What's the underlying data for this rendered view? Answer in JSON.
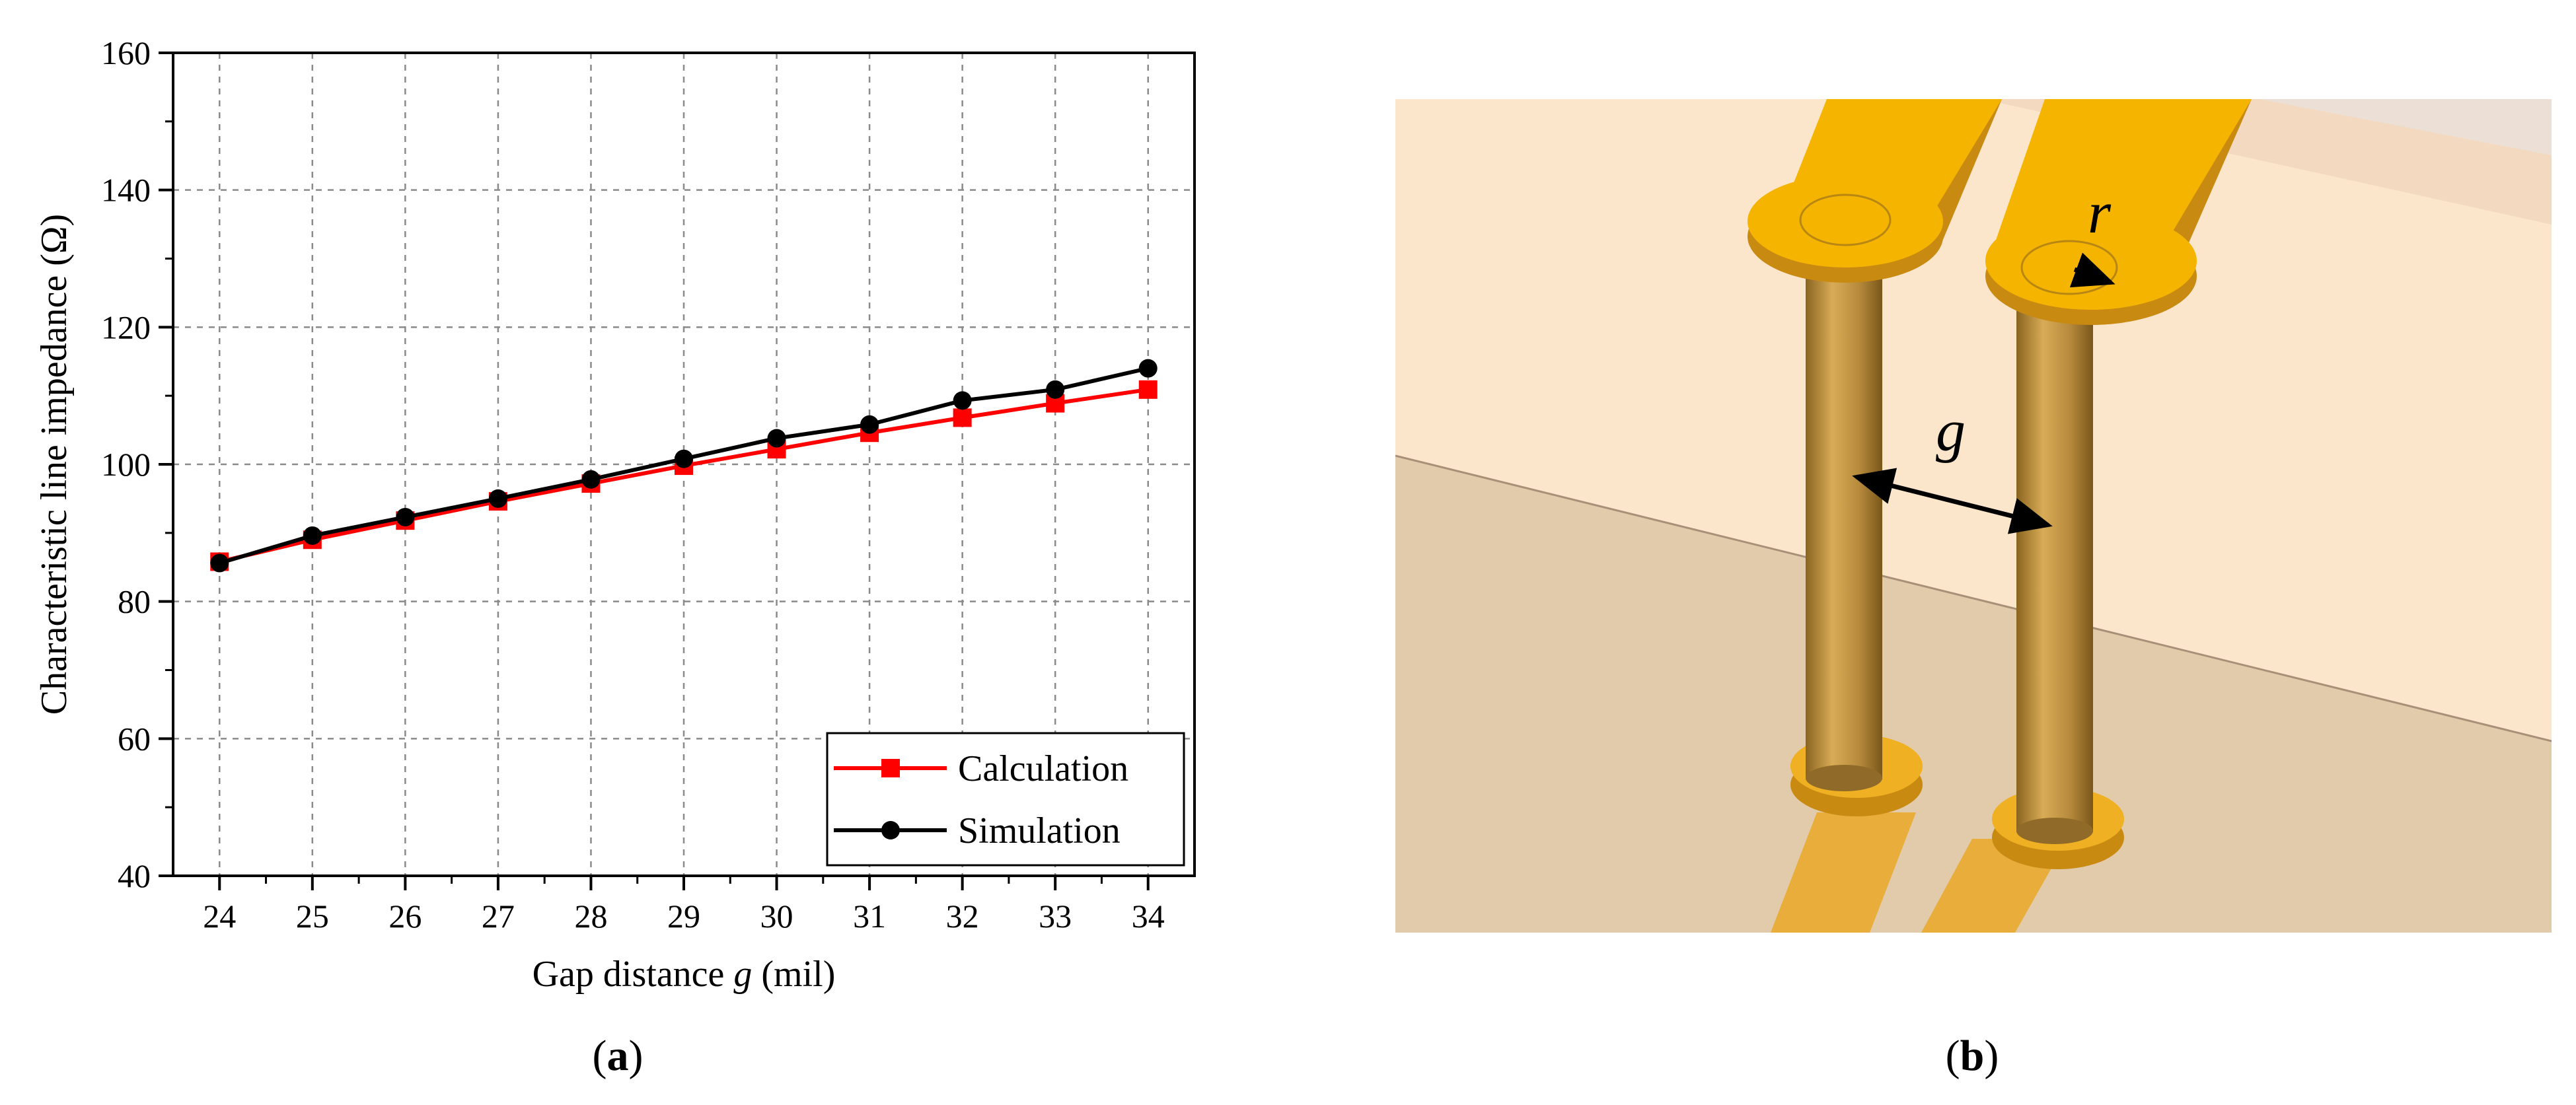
{
  "panel_a_label": {
    "open": "(",
    "letter": "a",
    "close": ")"
  },
  "panel_b_label": {
    "open": "(",
    "letter": "b",
    "close": ")"
  },
  "chart_data": {
    "type": "line",
    "xlabel_prefix": "Gap distance ",
    "xlabel_var": "g",
    "xlabel_suffix": " (mil)",
    "ylabel": "Characteristic line impedance (Ω)",
    "x": [
      24,
      25,
      26,
      27,
      28,
      29,
      30,
      31,
      32,
      33,
      34
    ],
    "xlim": [
      23.5,
      34.5
    ],
    "ylim": [
      40,
      160
    ],
    "yticks": [
      40,
      60,
      80,
      100,
      120,
      140,
      160
    ],
    "grid": true,
    "legend_position": "bottom-right",
    "series": [
      {
        "name": "Calculation",
        "color": "#ff0000",
        "marker": "square",
        "values": [
          85.8,
          89.0,
          91.8,
          94.6,
          97.2,
          99.8,
          102.2,
          104.6,
          106.8,
          108.9,
          110.9
        ]
      },
      {
        "name": "Simulation",
        "color": "#000000",
        "marker": "circle",
        "values": [
          85.6,
          89.6,
          92.3,
          95.0,
          97.8,
          100.8,
          103.8,
          105.8,
          109.3,
          110.9,
          114.0
        ]
      }
    ]
  },
  "diagram": {
    "radius_symbol": "r",
    "gap_symbol": "g",
    "colors": {
      "substrate_top": "#fbe6cc",
      "substrate_bottom": "#e0c8a8",
      "trace": "#f5b400",
      "via_barrel": "#b48a3a"
    }
  }
}
